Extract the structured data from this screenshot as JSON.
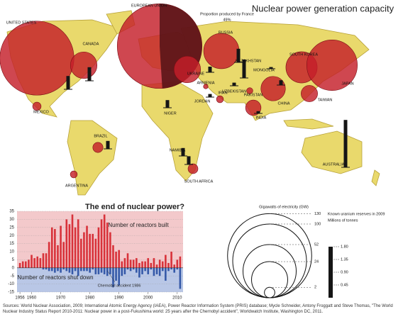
{
  "map": {
    "title": "Nuclear power generation capacity",
    "france_note": "Proportion produced by France",
    "france_share": {
      "value": 49,
      "label": "49%"
    },
    "capacity_color": "#c41e2a",
    "france_color": "#5a1518",
    "reserves_color": "#151515",
    "countries": [
      {
        "name": "UNITED STATES",
        "capacity_gw": 101,
        "reserves_mt": 0.47
      },
      {
        "name": "CANADA",
        "capacity_gw": 13,
        "reserves_mt": 0.48
      },
      {
        "name": "MEXICO",
        "capacity_gw": 1.3
      },
      {
        "name": "BRAZIL",
        "capacity_gw": 1.9,
        "reserves_mt": 0.28
      },
      {
        "name": "ARGENTINA",
        "capacity_gw": 0.9
      },
      {
        "name": "EUROPEAN UNION",
        "capacity_gw": 132
      },
      {
        "name": "RUSSIA",
        "capacity_gw": 23,
        "reserves_mt": 0.48
      },
      {
        "name": "UKRAINE",
        "capacity_gw": 13,
        "reserves_mt": 0.2
      },
      {
        "name": "ARMENIA",
        "capacity_gw": 0.4
      },
      {
        "name": "IRAN",
        "capacity_gw": 0.9
      },
      {
        "name": "JORDAN",
        "reserves_mt": 0.11
      },
      {
        "name": "NIGER",
        "reserves_mt": 0.27
      },
      {
        "name": "NAMIBIA",
        "reserves_mt": 0.28
      },
      {
        "name": "SOUTH AFRICA",
        "capacity_gw": 1.8,
        "reserves_mt": 0.29
      },
      {
        "name": "KAZAKHSTAN",
        "reserves_mt": 0.65
      },
      {
        "name": "UZBEKISTAN",
        "reserves_mt": 0.11
      },
      {
        "name": "MONGOLIA",
        "reserves_mt": 0.06
      },
      {
        "name": "PAKISTAN",
        "capacity_gw": 0.7
      },
      {
        "name": "INDIA",
        "capacity_gw": 4.4,
        "reserves_mt": 0.08
      },
      {
        "name": "CHINA",
        "capacity_gw": 11,
        "reserves_mt": 0.17
      },
      {
        "name": "SOUTH KOREA",
        "capacity_gw": 18
      },
      {
        "name": "JAPAN",
        "capacity_gw": 47
      },
      {
        "name": "TAIWAN",
        "capacity_gw": 5
      },
      {
        "name": "AUSTRALIA",
        "reserves_mt": 1.67
      }
    ]
  },
  "legend": {
    "capacity": {
      "title": "Gigawatts of electricity (GW)",
      "ticks": [
        130,
        100,
        52,
        24,
        2
      ]
    },
    "reserves": {
      "title": "Known uranium reserves in 2009",
      "unit": "Millions of tonnes",
      "ticks": [
        {
          "value": 1.8,
          "label": "1.80"
        },
        {
          "value": 1.35,
          "label": "1.35"
        },
        {
          "value": 0.9,
          "label": "0.90"
        },
        {
          "value": 0.45,
          "label": "0.45"
        }
      ]
    }
  },
  "chart_data": {
    "type": "bar",
    "title": "The end of nuclear power?",
    "x": [
      1956,
      1957,
      1958,
      1959,
      1960,
      1961,
      1962,
      1963,
      1964,
      1965,
      1966,
      1967,
      1968,
      1969,
      1970,
      1971,
      1972,
      1973,
      1974,
      1975,
      1976,
      1977,
      1978,
      1979,
      1980,
      1981,
      1982,
      1983,
      1984,
      1985,
      1986,
      1987,
      1988,
      1989,
      1990,
      1991,
      1992,
      1993,
      1994,
      1995,
      1996,
      1997,
      1998,
      1999,
      2000,
      2001,
      2002,
      2003,
      2004,
      2005,
      2006,
      2007,
      2008,
      2009,
      2010,
      2011
    ],
    "series": [
      {
        "name": "Number of reactors built",
        "color": "#d8323a",
        "values": [
          3,
          4,
          4,
          5,
          8,
          6,
          7,
          6,
          9,
          9,
          16,
          25,
          24,
          14,
          26,
          16,
          30,
          27,
          33,
          25,
          30,
          18,
          22,
          26,
          21,
          21,
          18,
          25,
          30,
          33,
          28,
          22,
          14,
          10,
          11,
          4,
          6,
          9,
          5,
          5,
          6,
          3,
          4,
          4,
          6,
          3,
          6,
          2,
          5,
          4,
          8,
          3,
          10,
          2,
          5,
          7
        ]
      },
      {
        "name": "Number of reactors shut down",
        "color": "#3559a8",
        "values": [
          0,
          0,
          0,
          0,
          0,
          0,
          0,
          0,
          -1,
          -1,
          -2,
          -2,
          -3,
          -2,
          -3,
          -1,
          -2,
          -3,
          -4,
          -2,
          -5,
          -2,
          -2,
          -2,
          -3,
          -1,
          -4,
          -4,
          -3,
          -4,
          -5,
          -4,
          -12,
          -8,
          -11,
          -5,
          -4,
          -1,
          -2,
          -1,
          -3,
          -6,
          -4,
          -2,
          -4,
          -1,
          -5,
          -4,
          -5,
          -2,
          -8,
          -2,
          -1,
          -3,
          -1,
          -13
        ]
      }
    ],
    "annotation": "Chernobyl accident 1986",
    "xlim": [
      1955,
      2012
    ],
    "xticks": [
      1956,
      1960,
      1970,
      1980,
      1990,
      2000,
      2010
    ],
    "ylim": [
      -15,
      35
    ],
    "yticks": [
      35,
      30,
      25,
      20,
      15,
      10,
      5,
      0,
      -5,
      -10,
      -15
    ],
    "grid": true
  },
  "source": "Sources: World Nuclear Association, 2009; International Atomic Energy Agency (IAEA), Power Reactor Information System (PRIS) database; Mycle Schneider, Antony Froggatt and Steve Thomas, \"The World Nuclear Industry Status Report 2010-2011: Nuclear power in a post-Fukushima world: 25 years after the Chernobyl accident\", Worldwatch Institute, Washington DC, 2011."
}
